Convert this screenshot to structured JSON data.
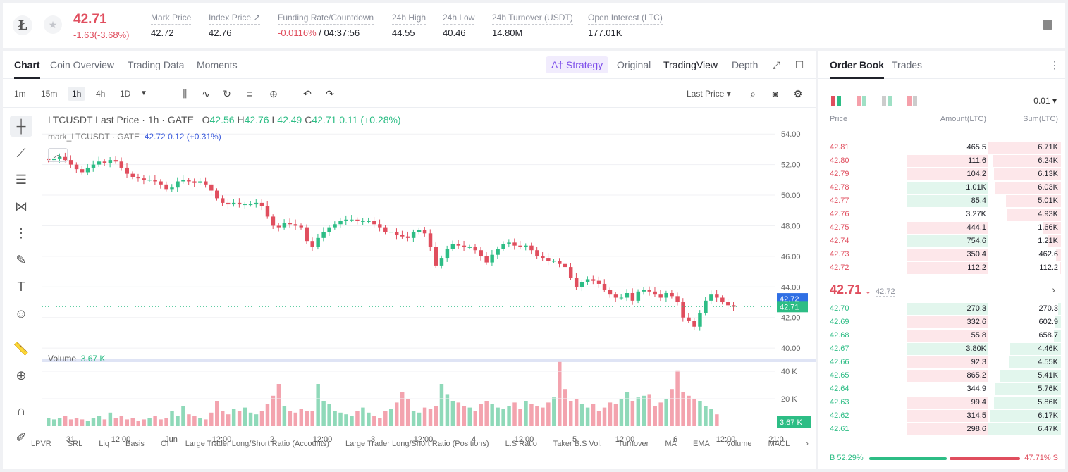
{
  "header": {
    "logo_glyph": "Ł",
    "last_price": "42.71",
    "change": "-1.63(-3.68%)",
    "stats": [
      {
        "label": "Mark Price",
        "value": "42.72"
      },
      {
        "label": "Index Price ↗",
        "value": "42.76"
      },
      {
        "label": "Funding Rate/Countdown",
        "value_red": "-0.0116%",
        "value": " / 04:37:56"
      },
      {
        "label": "24h High",
        "value": "44.55"
      },
      {
        "label": "24h Low",
        "value": "40.46"
      },
      {
        "label": "24h Turnover (USDT)",
        "value": "14.80M"
      },
      {
        "label": "Open Interest (LTC)",
        "value": "177.01K"
      }
    ]
  },
  "chart_tabs": [
    "Chart",
    "Coin Overview",
    "Trading Data",
    "Moments"
  ],
  "view_tabs": {
    "strategy": "A† Strategy",
    "original": "Original",
    "tradingview": "TradingView",
    "depth": "Depth"
  },
  "timeframes": [
    "1m",
    "15m",
    "1h",
    "4h",
    "1D"
  ],
  "last_price_select": "Last Price ▾",
  "legend": {
    "symbol": "LTCUSDT Last Price · 1h · GATE",
    "o": "O",
    "ov": "42.56",
    "h": "H",
    "hv": "42.76",
    "l": "L",
    "lv": "42.49",
    "c": "C",
    "cv": "42.71",
    "chg": "0.11 (+0.28%)",
    "mark": "mark_LTCUSDT · GATE",
    "mark_val": "42.72",
    "mark_chg": "0.12 (+0.31%)"
  },
  "volume_legend": {
    "label": "Volume",
    "value": "3.67 K"
  },
  "indicators": [
    "LPVR",
    "SRL",
    "Liq",
    "Basis",
    "OI",
    "Large Trader Long/Short Ratio (Accounts)",
    "Large Trader Long/Short Ratio (Positions)",
    "L.S Ratio",
    "Taker B.S Vol.",
    "Turnover",
    "MA",
    "EMA",
    "Volume",
    "MACL"
  ],
  "chart_data": {
    "type": "candlestick",
    "y_ticks": [
      "54.00",
      "52.00",
      "50.00",
      "48.00",
      "46.00",
      "44.00",
      "42.00",
      "40.00"
    ],
    "ylim": [
      39.5,
      54.7
    ],
    "vol_ticks": [
      "40 K",
      "20 K"
    ],
    "x_ticks": [
      "31",
      "12:00",
      "Jun",
      "12:00",
      "2",
      "12:00",
      "3",
      "12:00",
      "4",
      "12:00",
      "5",
      "12:00",
      "6",
      "12:00",
      "21:0"
    ],
    "mark_price_label": "42.72",
    "last_price_label": "42.71",
    "volume_label": "3.67 K",
    "close_path": [
      52.3,
      52.4,
      52.5,
      52.3,
      52.0,
      51.7,
      51.5,
      51.8,
      52.0,
      52.2,
      52.1,
      52.3,
      52.2,
      51.8,
      51.4,
      51.2,
      51.1,
      51.0,
      51.0,
      50.9,
      50.7,
      50.4,
      50.5,
      50.9,
      51.0,
      50.9,
      50.8,
      50.9,
      50.7,
      50.3,
      49.8,
      49.5,
      49.4,
      49.5,
      49.4,
      49.4,
      49.4,
      49.5,
      49.3,
      48.6,
      48.0,
      47.9,
      48.2,
      48.1,
      48.0,
      47.9,
      47.0,
      46.6,
      47.2,
      47.6,
      47.9,
      48.1,
      48.3,
      48.4,
      48.4,
      48.3,
      48.3,
      48.3,
      48.1,
      47.9,
      47.6,
      47.6,
      47.4,
      47.3,
      47.2,
      47.6,
      47.7,
      47.5,
      46.6,
      45.4,
      45.9,
      46.5,
      46.8,
      46.7,
      46.6,
      46.6,
      46.4,
      46.0,
      45.6,
      46.1,
      46.5,
      46.8,
      46.9,
      46.7,
      46.6,
      46.7,
      46.4,
      46.0,
      45.9,
      45.7,
      45.7,
      45.5,
      45.3,
      44.6,
      44.0,
      44.3,
      44.5,
      44.4,
      44.2,
      43.8,
      43.5,
      43.3,
      43.3,
      43.6,
      43.1,
      43.7,
      43.8,
      43.7,
      43.5,
      43.3,
      43.6,
      43.4,
      43.0,
      42.0,
      41.8,
      41.4,
      42.3,
      43.1,
      43.5,
      43.3,
      43.0,
      42.8,
      42.7
    ],
    "volume_heights": [
      5,
      4,
      5,
      6,
      4,
      5,
      4,
      3,
      5,
      6,
      4,
      8,
      5,
      6,
      4,
      5,
      3,
      4,
      5,
      6,
      4,
      5,
      9,
      6,
      12,
      7,
      6,
      5,
      4,
      8,
      15,
      9,
      7,
      10,
      9,
      11,
      8,
      7,
      9,
      13,
      18,
      25,
      12,
      9,
      8,
      10,
      9,
      9,
      25,
      15,
      13,
      9,
      8,
      7,
      6,
      9,
      11,
      8,
      6,
      5,
      9,
      10,
      14,
      20,
      16,
      9,
      8,
      11,
      10,
      12,
      25,
      19,
      15,
      14,
      12,
      11,
      9,
      13,
      15,
      13,
      11,
      10,
      12,
      14,
      10,
      15,
      13,
      12,
      11,
      14,
      17,
      38,
      22,
      15,
      16,
      13,
      11,
      13,
      9,
      11,
      14,
      13,
      16,
      20,
      15,
      17,
      18,
      19,
      12,
      14,
      16,
      22,
      33,
      20,
      18,
      16,
      15,
      12,
      10,
      7
    ]
  },
  "order_book": {
    "tabs": [
      "Order Book",
      "Trades"
    ],
    "precision": "0.01 ▾",
    "headers": {
      "price": "Price",
      "amount": "Amount(LTC)",
      "sum": "Sum(LTC)"
    },
    "asks": [
      {
        "price": "42.81",
        "amount": "465.5",
        "sum": "6.71K",
        "amt_pct": 0,
        "sum_pct": 100
      },
      {
        "price": "42.80",
        "amount": "111.6",
        "sum": "6.24K",
        "amt_pct": 100,
        "sum_pct": 93
      },
      {
        "price": "42.79",
        "amount": "104.2",
        "sum": "6.13K",
        "amt_pct": 100,
        "sum_pct": 91
      },
      {
        "price": "42.78",
        "amount": "1.01K",
        "sum": "6.03K",
        "amt_pct": 100,
        "sum_pct": 90,
        "green": true
      },
      {
        "price": "42.77",
        "amount": "85.4",
        "sum": "5.01K",
        "amt_pct": 100,
        "sum_pct": 75,
        "green": true
      },
      {
        "price": "42.76",
        "amount": "3.27K",
        "sum": "4.93K",
        "amt_pct": 0,
        "sum_pct": 73
      },
      {
        "price": "42.75",
        "amount": "444.1",
        "sum": "1.66K",
        "amt_pct": 100,
        "sum_pct": 25
      },
      {
        "price": "42.74",
        "amount": "754.6",
        "sum": "1.21K",
        "amt_pct": 100,
        "sum_pct": 18,
        "green": true
      },
      {
        "price": "42.73",
        "amount": "350.4",
        "sum": "462.6",
        "amt_pct": 100,
        "sum_pct": 7
      },
      {
        "price": "42.72",
        "amount": "112.2",
        "sum": "112.2",
        "amt_pct": 100,
        "sum_pct": 2
      }
    ],
    "mid_price": "42.71 ↓",
    "mark_price": "42.72",
    "bids": [
      {
        "price": "42.70",
        "amount": "270.3",
        "sum": "270.3",
        "amt_pct": 100,
        "sum_pct": 4,
        "green": true
      },
      {
        "price": "42.69",
        "amount": "332.6",
        "sum": "602.9",
        "amt_pct": 100,
        "sum_pct": 9
      },
      {
        "price": "42.68",
        "amount": "55.8",
        "sum": "658.7",
        "amt_pct": 100,
        "sum_pct": 10
      },
      {
        "price": "42.67",
        "amount": "3.80K",
        "sum": "4.46K",
        "amt_pct": 100,
        "sum_pct": 69,
        "green": true
      },
      {
        "price": "42.66",
        "amount": "92.3",
        "sum": "4.55K",
        "amt_pct": 100,
        "sum_pct": 70
      },
      {
        "price": "42.65",
        "amount": "865.2",
        "sum": "5.41K",
        "amt_pct": 100,
        "sum_pct": 84
      },
      {
        "price": "42.64",
        "amount": "344.9",
        "sum": "5.76K",
        "amt_pct": 0,
        "sum_pct": 89
      },
      {
        "price": "42.63",
        "amount": "99.4",
        "sum": "5.86K",
        "amt_pct": 100,
        "sum_pct": 91
      },
      {
        "price": "42.62",
        "amount": "314.5",
        "sum": "6.17K",
        "amt_pct": 100,
        "sum_pct": 96
      },
      {
        "price": "42.61",
        "amount": "298.6",
        "sum": "6.47K",
        "amt_pct": 100,
        "sum_pct": 100
      }
    ],
    "buy_ratio": "B 52.29%",
    "sell_ratio": "47.71% S"
  }
}
